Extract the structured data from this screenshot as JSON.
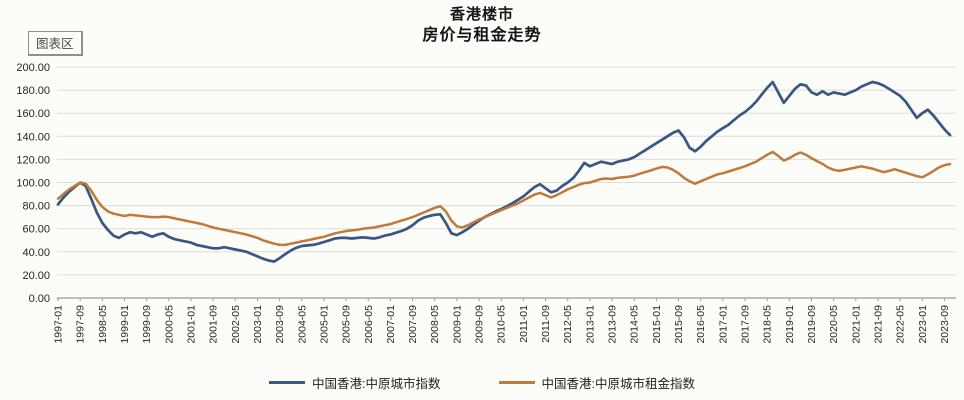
{
  "chart_data": {
    "type": "line",
    "title_line1": "香港楼市",
    "title_line2": "房价与租金走势",
    "chart_area_label": "图表区",
    "ylim": [
      0,
      200
    ],
    "grid": "horizontal",
    "legend_position": "bottom",
    "y_ticks": [
      "200.00",
      "180.00",
      "160.00",
      "140.00",
      "120.00",
      "100.00",
      "80.00",
      "60.00",
      "40.00",
      "20.00",
      "0.00"
    ],
    "x_tick_labels": [
      "1997-01",
      "1997-09",
      "1998-05",
      "1999-01",
      "1999-09",
      "2000-05",
      "2001-01",
      "2001-09",
      "2002-05",
      "2003-01",
      "2003-09",
      "2004-05",
      "2005-01",
      "2005-09",
      "2006-05",
      "2007-01",
      "2007-09",
      "2008-05",
      "2009-01",
      "2009-09",
      "2010-05",
      "2011-01",
      "2011-09",
      "2012-05",
      "2013-01",
      "2013-09",
      "2014-05",
      "2015-01",
      "2015-09",
      "2016-05",
      "2017-01",
      "2017-09",
      "2018-05",
      "2019-01",
      "2019-09",
      "2020-05",
      "2021-01",
      "2021-09",
      "2022-05",
      "2023-01",
      "2023-09"
    ],
    "x_start": "1997-01",
    "x_step_months": 2,
    "axis_color": "#9a9a9a",
    "gridline_color": "#dcdcda",
    "label_color": "#262626",
    "series": [
      {
        "name": "中国香港:中原城市指数",
        "color": "#3a5685",
        "values": [
          81,
          87,
          92,
          96,
          100,
          97,
          86,
          74,
          65,
          59,
          54,
          52,
          55,
          57,
          56,
          57,
          55,
          53,
          55,
          56,
          53,
          51,
          50,
          49,
          48,
          46,
          45,
          44,
          43,
          43,
          44,
          43,
          42,
          41,
          40,
          38,
          36,
          34,
          32.5,
          31.5,
          34.5,
          38,
          41,
          43.5,
          45,
          45.5,
          46,
          47,
          48.5,
          50,
          51.5,
          52,
          52,
          51.5,
          52,
          52.5,
          52,
          51.5,
          52.5,
          54,
          55,
          56.5,
          58,
          60,
          63,
          67,
          69.5,
          71,
          72,
          72.5,
          65,
          56,
          54.5,
          57,
          60,
          63.5,
          67,
          70,
          72.5,
          75,
          77,
          79.5,
          82,
          85,
          88,
          92,
          96,
          98.5,
          95,
          91.5,
          93,
          97,
          100,
          104,
          110,
          117,
          114,
          116,
          118,
          117,
          116,
          118,
          119,
          120,
          122,
          125,
          128,
          131,
          134,
          137,
          140,
          143,
          145,
          139,
          130,
          127,
          131,
          136,
          140,
          144,
          147,
          150,
          154,
          158,
          161,
          165,
          170,
          176,
          182,
          187,
          178,
          169,
          175,
          181,
          185,
          184,
          178,
          176,
          179,
          176,
          178,
          177,
          176,
          178,
          180,
          183,
          185,
          187,
          186,
          184,
          181,
          178,
          175,
          170,
          163,
          156,
          160,
          163,
          158,
          152,
          146,
          141
        ]
      },
      {
        "name": "中国香港:中原城市租金指数",
        "color": "#c0793a",
        "values": [
          86,
          90,
          94,
          97,
          100,
          99,
          93,
          85,
          79,
          75,
          73,
          72,
          71,
          72,
          71.5,
          71,
          70.5,
          70,
          70,
          70.5,
          70,
          69,
          68,
          67,
          66,
          65,
          64,
          62.5,
          61,
          60,
          59,
          58,
          57,
          56,
          55,
          53.5,
          52,
          50,
          48.5,
          47,
          46,
          46,
          47,
          48,
          49,
          50,
          51,
          52,
          53,
          54.5,
          56,
          57,
          58,
          58.5,
          59,
          60,
          60.5,
          61,
          62,
          63,
          64,
          65.5,
          67,
          68.5,
          70,
          72,
          74,
          76,
          78,
          79.5,
          75,
          67,
          62,
          61,
          63,
          65.5,
          68,
          70,
          72,
          74,
          76,
          78,
          80,
          82,
          84.5,
          87,
          89.5,
          91,
          89,
          87,
          89,
          91.5,
          94,
          96,
          98,
          99.5,
          100,
          101.5,
          103,
          103.5,
          103,
          104,
          104.5,
          105,
          106,
          107.5,
          109,
          110.5,
          112,
          113.5,
          113,
          111,
          108,
          104,
          101,
          99,
          101,
          103,
          105,
          107,
          108,
          109.5,
          111,
          112.5,
          114,
          116,
          118,
          121,
          124,
          126.5,
          123,
          119,
          121,
          124,
          126,
          124,
          121,
          118.5,
          116,
          113,
          111,
          110,
          111,
          112,
          113,
          114,
          113,
          112,
          110.5,
          109,
          110,
          111.5,
          110,
          108.5,
          107,
          105.5,
          104.5,
          107,
          110,
          113,
          115,
          116
        ]
      }
    ]
  }
}
